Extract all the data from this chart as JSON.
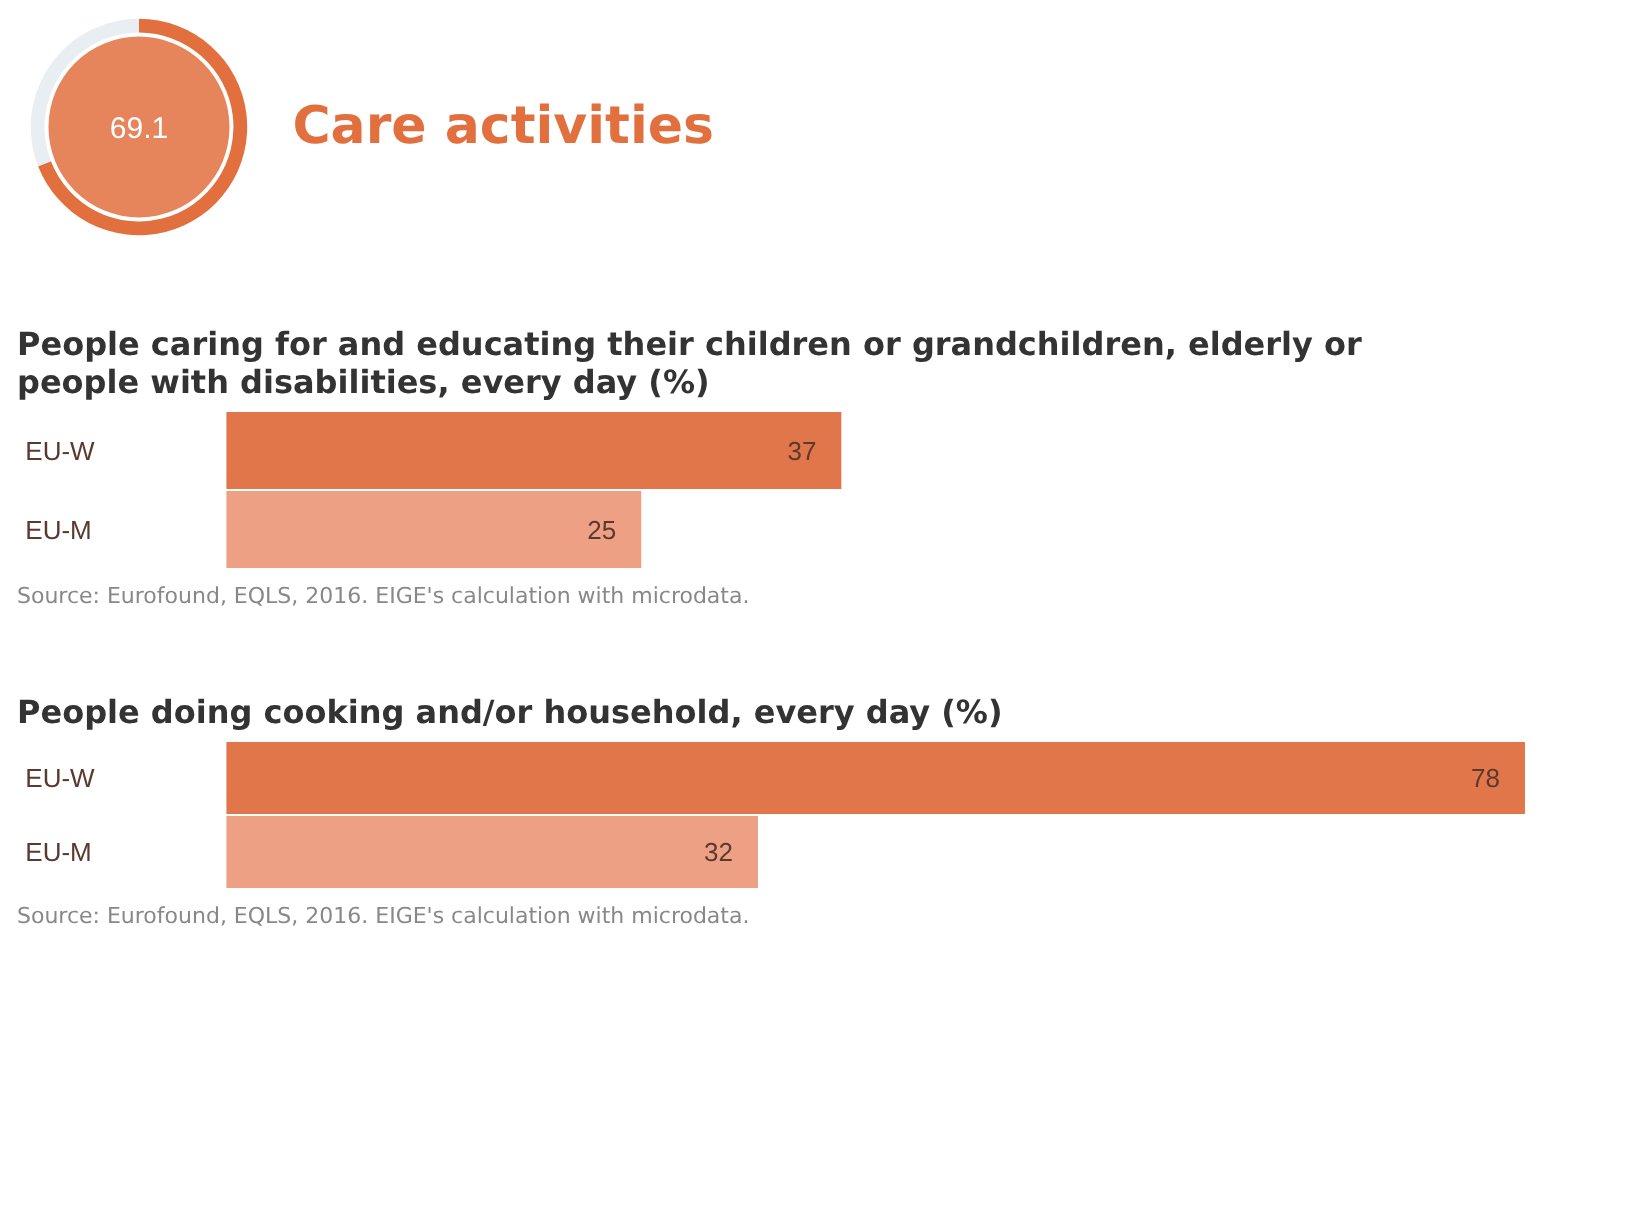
{
  "chart_data": [
    {
      "type": "donut",
      "title": "Care activities",
      "categories": [
        null,
        null
      ],
      "values": [
        69.1,
        30.9
      ],
      "colors": [
        "#e2703f",
        "#e8eef2"
      ],
      "value_labels": [
        "69.1",
        null
      ]
    },
    {
      "type": "bar",
      "orientation": "horizontal",
      "title": "People caring for and educating their children or grandchildren, elderly or people with disabilities, every day (%)",
      "categories": [
        "EU-W",
        "EU-M"
      ],
      "values": [
        37,
        25
      ],
      "colors": [
        "#e2764b",
        "#eda084"
      ],
      "data_labels": true,
      "annotations": [
        "Source: Eurofound, EQLS, 2016. EIGE's calculation with microdata."
      ]
    },
    {
      "type": "bar",
      "orientation": "horizontal",
      "title": "People doing cooking and/or household, every day (%)",
      "categories": [
        "EU-W",
        "EU-M"
      ],
      "values": [
        78,
        32
      ],
      "colors": [
        "#e2764b",
        "#eda084"
      ],
      "data_labels": true,
      "annotations": [
        "Source: Eurofound, EQLS, 2016. EIGE's calculation with microdata."
      ]
    }
  ]
}
